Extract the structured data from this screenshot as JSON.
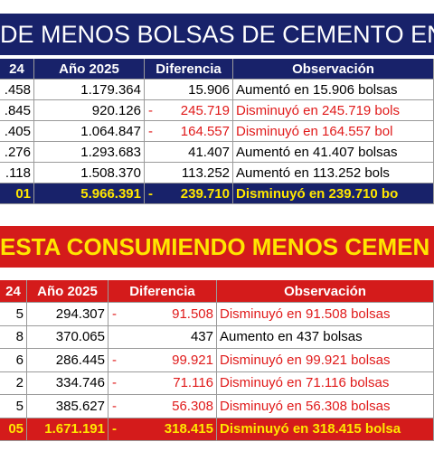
{
  "banner_1": {
    "title": "DE MENOS BOLSAS DE CEMENTO EN BO"
  },
  "table_1": {
    "header": [
      "24",
      "Año 2025",
      "Diferencia",
      "Observación"
    ],
    "rows": [
      {
        "prev": ".458",
        "year": "1.179.364",
        "diff": "15.906",
        "note": "Aumentó en 15.906 bolsas"
      },
      {
        "prev": ".845",
        "year": "920.126",
        "sign": "-",
        "diff": "245.719",
        "note": "Disminuyó en 245.719 bols"
      },
      {
        "prev": ".405",
        "year": "1.064.847",
        "sign": "-",
        "diff": "164.557",
        "note": "Disminuyó en 164.557 bol"
      },
      {
        "prev": ".276",
        "year": "1.293.683",
        "diff": "41.407",
        "note": "Aumentó en 41.407 bolsas"
      },
      {
        "prev": ".118",
        "year": "1.508.370",
        "diff": "113.252",
        "note": "Aumentó en 113.252 bols"
      }
    ],
    "total": {
      "prev": "01",
      "year": "5.966.391",
      "sign": "-",
      "diff": "239.710",
      "note": "Disminuyó en 239.710 bo"
    }
  },
  "banner_2": {
    "title": "ESTA CONSUMIENDO MENOS CEMEN"
  },
  "table_2": {
    "header": [
      "24",
      "Año 2025",
      "Diferencia",
      "Observación"
    ],
    "rows": [
      {
        "prev": "5",
        "year": "294.307",
        "sign": "-",
        "diff": "91.508",
        "note": "Disminuyó en 91.508 bolsas"
      },
      {
        "prev": "8",
        "year": "370.065",
        "diff": "437",
        "note": "Aumento en 437 bolsas"
      },
      {
        "prev": "6",
        "year": "286.445",
        "sign": "-",
        "diff": "99.921",
        "note": "Disminuyó en 99.921 bolsas"
      },
      {
        "prev": "2",
        "year": "334.746",
        "sign": "-",
        "diff": "71.116",
        "note": "Disminuyó en 71.116 bolsas"
      },
      {
        "prev": "5",
        "year": "385.627",
        "sign": "-",
        "diff": "56.308",
        "note": "Disminuyó en 56.308 bolsas"
      }
    ],
    "total": {
      "prev": "05",
      "year": "1.671.191",
      "sign": "-",
      "diff": "318.415",
      "note": "Disminuyó en 318.415 bolsa"
    }
  }
}
